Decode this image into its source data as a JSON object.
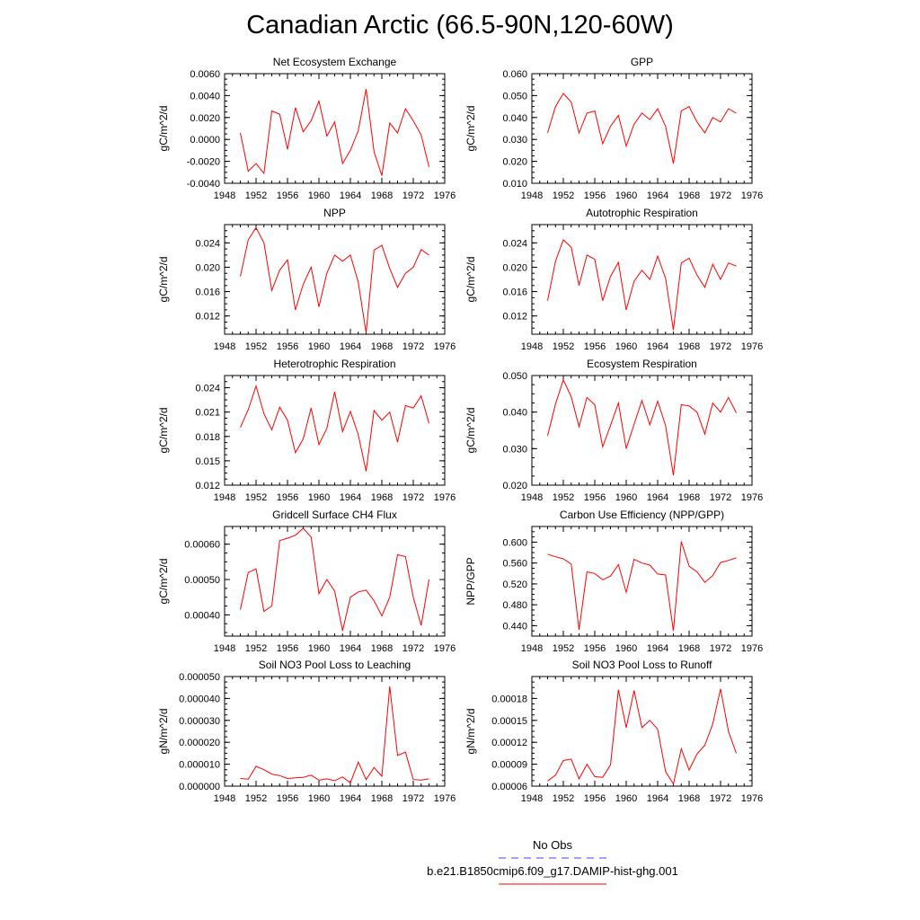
{
  "figure": {
    "title": "Canadian Arctic (66.5-90N,120-60W)",
    "line_color": "#ff0000",
    "obs_color": "#4040ff"
  },
  "legend": {
    "obs_label": "No Obs",
    "model_label": "b.e21.B1850cmip6.f09_g17.DAMIP-hist-ghg.001"
  },
  "chart_data": [
    {
      "type": "line",
      "title": "Net Ecosystem Exchange",
      "ylabel": "gC/m^2/d",
      "xlim": [
        1948,
        1976
      ],
      "xticks": [
        "1948",
        "1952",
        "1956",
        "1960",
        "1964",
        "1968",
        "1972",
        "1976"
      ],
      "ylim": [
        -0.004,
        0.006
      ],
      "yticks": [
        "-0.0040",
        "-0.0020",
        "0.0000",
        "0.0020",
        "0.0040",
        "0.0060"
      ],
      "x": [
        1950,
        1951,
        1952,
        1953,
        1954,
        1955,
        1956,
        1957,
        1958,
        1959,
        1960,
        1961,
        1962,
        1963,
        1964,
        1965,
        1966,
        1967,
        1968,
        1969,
        1970,
        1971,
        1972,
        1973,
        1974
      ],
      "values": [
        0.0006,
        -0.0029,
        -0.0022,
        -0.0031,
        0.0026,
        0.0023,
        -0.0009,
        0.0029,
        0.0007,
        0.0017,
        0.0035,
        0.0003,
        0.0016,
        -0.0022,
        -0.001,
        0.0008,
        0.0046,
        -0.0011,
        -0.0033,
        0.0015,
        0.0006,
        0.0028,
        0.0017,
        0.0004,
        -0.0025
      ]
    },
    {
      "type": "line",
      "title": "GPP",
      "ylabel": "gC/m^2/d",
      "xlim": [
        1948,
        1976
      ],
      "xticks": [
        "1948",
        "1952",
        "1956",
        "1960",
        "1964",
        "1968",
        "1972",
        "1976"
      ],
      "ylim": [
        0.01,
        0.06
      ],
      "yticks": [
        "0.010",
        "0.020",
        "0.030",
        "0.040",
        "0.050",
        "0.060"
      ],
      "x": [
        1950,
        1951,
        1952,
        1953,
        1954,
        1955,
        1956,
        1957,
        1958,
        1959,
        1960,
        1961,
        1962,
        1963,
        1964,
        1965,
        1966,
        1967,
        1968,
        1969,
        1970,
        1971,
        1972,
        1973,
        1974
      ],
      "values": [
        0.033,
        0.045,
        0.051,
        0.047,
        0.033,
        0.042,
        0.043,
        0.028,
        0.036,
        0.041,
        0.027,
        0.037,
        0.042,
        0.039,
        0.044,
        0.036,
        0.019,
        0.043,
        0.045,
        0.038,
        0.033,
        0.04,
        0.038,
        0.044,
        0.042
      ]
    },
    {
      "type": "line",
      "title": "NPP",
      "ylabel": "gC/m^2/d",
      "xlim": [
        1948,
        1976
      ],
      "xticks": [
        "1948",
        "1952",
        "1956",
        "1960",
        "1964",
        "1968",
        "1972",
        "1976"
      ],
      "ylim": [
        0.009,
        0.027
      ],
      "yticks": [
        "0.012",
        "0.016",
        "0.020",
        "0.024"
      ],
      "x": [
        1950,
        1951,
        1952,
        1953,
        1954,
        1955,
        1956,
        1957,
        1958,
        1959,
        1960,
        1961,
        1962,
        1963,
        1964,
        1965,
        1966,
        1967,
        1968,
        1969,
        1970,
        1971,
        1972,
        1973,
        1974
      ],
      "values": [
        0.0185,
        0.0245,
        0.0265,
        0.024,
        0.0162,
        0.0195,
        0.0212,
        0.013,
        0.0172,
        0.02,
        0.0135,
        0.019,
        0.022,
        0.021,
        0.022,
        0.0175,
        0.0092,
        0.0228,
        0.0236,
        0.0198,
        0.0167,
        0.019,
        0.02,
        0.0229,
        0.022
      ]
    },
    {
      "type": "line",
      "title": "Autotrophic Respiration",
      "ylabel": "gC/m^2/d",
      "xlim": [
        1948,
        1976
      ],
      "xticks": [
        "1948",
        "1952",
        "1956",
        "1960",
        "1964",
        "1968",
        "1972",
        "1976"
      ],
      "ylim": [
        0.009,
        0.027
      ],
      "yticks": [
        "0.012",
        "0.016",
        "0.020",
        "0.024"
      ],
      "x": [
        1950,
        1951,
        1952,
        1953,
        1954,
        1955,
        1956,
        1957,
        1958,
        1959,
        1960,
        1961,
        1962,
        1963,
        1964,
        1965,
        1966,
        1967,
        1968,
        1969,
        1970,
        1971,
        1972,
        1973,
        1974
      ],
      "values": [
        0.0145,
        0.021,
        0.0245,
        0.0233,
        0.017,
        0.022,
        0.0213,
        0.0145,
        0.0185,
        0.0208,
        0.013,
        0.0177,
        0.0195,
        0.018,
        0.0218,
        0.0182,
        0.0097,
        0.0207,
        0.0215,
        0.0187,
        0.0167,
        0.0205,
        0.018,
        0.0207,
        0.0202
      ]
    },
    {
      "type": "line",
      "title": "Heterotrophic Respiration",
      "ylabel": "gC/m^2/d",
      "xlim": [
        1948,
        1976
      ],
      "xticks": [
        "1948",
        "1952",
        "1956",
        "1960",
        "1964",
        "1968",
        "1972",
        "1976"
      ],
      "ylim": [
        0.012,
        0.0255
      ],
      "yticks": [
        "0.012",
        "0.015",
        "0.018",
        "0.021",
        "0.024"
      ],
      "x": [
        1950,
        1951,
        1952,
        1953,
        1954,
        1955,
        1956,
        1957,
        1958,
        1959,
        1960,
        1961,
        1962,
        1963,
        1964,
        1965,
        1966,
        1967,
        1968,
        1969,
        1970,
        1971,
        1972,
        1973,
        1974
      ],
      "values": [
        0.0191,
        0.0213,
        0.0242,
        0.0208,
        0.0188,
        0.0216,
        0.02,
        0.016,
        0.0177,
        0.0215,
        0.017,
        0.019,
        0.0235,
        0.0186,
        0.0211,
        0.0182,
        0.0137,
        0.0212,
        0.02,
        0.021,
        0.0173,
        0.0218,
        0.0215,
        0.023,
        0.0196
      ]
    },
    {
      "type": "line",
      "title": "Ecosystem Respiration",
      "ylabel": "gC/m^2/d",
      "xlim": [
        1948,
        1976
      ],
      "xticks": [
        "1948",
        "1952",
        "1956",
        "1960",
        "1964",
        "1968",
        "1972",
        "1976"
      ],
      "ylim": [
        0.02,
        0.05
      ],
      "yticks": [
        "0.020",
        "0.030",
        "0.040",
        "0.050"
      ],
      "x": [
        1950,
        1951,
        1952,
        1953,
        1954,
        1955,
        1956,
        1957,
        1958,
        1959,
        1960,
        1961,
        1962,
        1963,
        1964,
        1965,
        1966,
        1967,
        1968,
        1969,
        1970,
        1971,
        1972,
        1973,
        1974
      ],
      "values": [
        0.0335,
        0.0422,
        0.0488,
        0.0442,
        0.036,
        0.044,
        0.042,
        0.0305,
        0.0363,
        0.0425,
        0.03,
        0.0367,
        0.0432,
        0.0365,
        0.043,
        0.0363,
        0.0227,
        0.042,
        0.0417,
        0.04,
        0.034,
        0.0425,
        0.04,
        0.044,
        0.0398
      ]
    },
    {
      "type": "line",
      "title": "Gridcell Surface CH4 Flux",
      "ylabel": "gC/m^2/d",
      "xlim": [
        1948,
        1976
      ],
      "xticks": [
        "1948",
        "1952",
        "1956",
        "1960",
        "1964",
        "1968",
        "1972",
        "1976"
      ],
      "ylim": [
        0.00034,
        0.00065
      ],
      "yticks": [
        "0.00040",
        "0.00050",
        "0.00060"
      ],
      "x": [
        1950,
        1951,
        1952,
        1953,
        1954,
        1955,
        1956,
        1957,
        1958,
        1959,
        1960,
        1961,
        1962,
        1963,
        1964,
        1965,
        1966,
        1967,
        1968,
        1969,
        1970,
        1971,
        1972,
        1973,
        1974
      ],
      "values": [
        0.000415,
        0.00052,
        0.00053,
        0.00041,
        0.000425,
        0.00061,
        0.000617,
        0.000625,
        0.000645,
        0.00062,
        0.00046,
        0.0005,
        0.000467,
        0.000355,
        0.00045,
        0.000465,
        0.00047,
        0.00044,
        0.000397,
        0.00045,
        0.00057,
        0.000565,
        0.00045,
        0.00037,
        0.0005
      ]
    },
    {
      "type": "line",
      "title": "Carbon Use Efficiency (NPP/GPP)",
      "ylabel": "NPP/GPP",
      "xlim": [
        1948,
        1976
      ],
      "xticks": [
        "1948",
        "1952",
        "1956",
        "1960",
        "1964",
        "1968",
        "1972",
        "1976"
      ],
      "ylim": [
        0.42,
        0.63
      ],
      "yticks": [
        "0.440",
        "0.480",
        "0.520",
        "0.560",
        "0.600"
      ],
      "x": [
        1950,
        1951,
        1952,
        1953,
        1954,
        1955,
        1956,
        1957,
        1958,
        1959,
        1960,
        1961,
        1962,
        1963,
        1964,
        1965,
        1966,
        1967,
        1968,
        1969,
        1970,
        1971,
        1972,
        1973,
        1974
      ],
      "values": [
        0.577,
        0.572,
        0.568,
        0.558,
        0.432,
        0.543,
        0.54,
        0.528,
        0.535,
        0.557,
        0.504,
        0.567,
        0.56,
        0.556,
        0.539,
        0.537,
        0.43,
        0.601,
        0.554,
        0.543,
        0.523,
        0.536,
        0.561,
        0.565,
        0.57
      ]
    },
    {
      "type": "line",
      "title": "Soil NO3 Pool Loss to Leaching",
      "ylabel": "gN/m^2/d",
      "xlim": [
        1948,
        1976
      ],
      "xticks": [
        "1948",
        "1952",
        "1956",
        "1960",
        "1964",
        "1968",
        "1972",
        "1976"
      ],
      "ylim": [
        0.0,
        5e-05
      ],
      "yticks": [
        "0.000000",
        "0.000010",
        "0.000020",
        "0.000030",
        "0.000040",
        "0.000050"
      ],
      "x": [
        1950,
        1951,
        1952,
        1953,
        1954,
        1955,
        1956,
        1957,
        1958,
        1959,
        1960,
        1961,
        1962,
        1963,
        1964,
        1965,
        1966,
        1967,
        1968,
        1969,
        1970,
        1971,
        1972,
        1973,
        1974
      ],
      "values": [
        3.5e-06,
        3.2e-06,
        9e-06,
        7.5e-06,
        5.5e-06,
        4.8e-06,
        3.5e-06,
        3.8e-06,
        4e-06,
        5e-06,
        2.7e-06,
        3.3e-06,
        2.5e-06,
        4.2e-06,
        1.5e-06,
        1.1e-05,
        3e-06,
        8.5e-06,
        4.5e-06,
        4.55e-05,
        1.4e-05,
        1.55e-05,
        3e-06,
        2.8e-06,
        3.3e-06
      ]
    },
    {
      "type": "line",
      "title": "Soil NO3 Pool Loss to Runoff",
      "ylabel": "gN/m^2/d",
      "xlim": [
        1948,
        1976
      ],
      "xticks": [
        "1948",
        "1952",
        "1956",
        "1960",
        "1964",
        "1968",
        "1972",
        "1976"
      ],
      "ylim": [
        6e-05,
        0.00021
      ],
      "yticks": [
        "0.00006",
        "0.00009",
        "0.00012",
        "0.00015",
        "0.00018"
      ],
      "x": [
        1950,
        1951,
        1952,
        1953,
        1954,
        1955,
        1956,
        1957,
        1958,
        1959,
        1960,
        1961,
        1962,
        1963,
        1964,
        1965,
        1966,
        1967,
        1968,
        1969,
        1970,
        1971,
        1972,
        1973,
        1974
      ],
      "values": [
        6.7e-05,
        7.5e-05,
        9.5e-05,
        9.7e-05,
        7e-05,
        9e-05,
        7.3e-05,
        7.2e-05,
        8.9e-05,
        0.000192,
        0.00014,
        0.000191,
        0.00014,
        0.00015,
        0.000138,
        8e-05,
        6.3e-05,
        0.000111,
        8.2e-05,
        0.000104,
        0.000116,
        0.000145,
        0.000193,
        0.000135,
        0.000105
      ]
    }
  ]
}
